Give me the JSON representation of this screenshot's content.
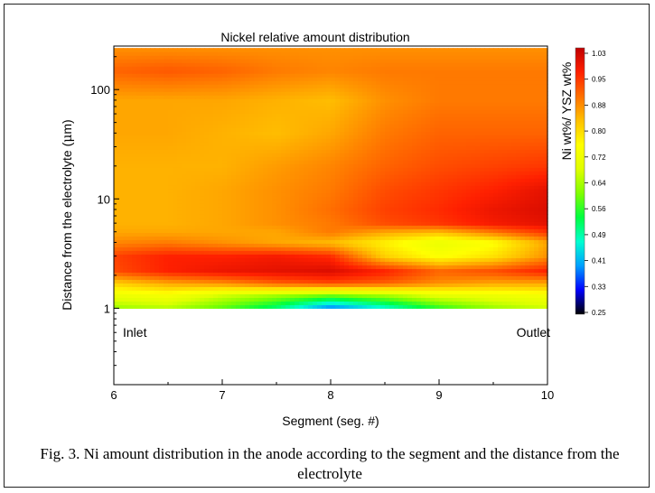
{
  "chart_data": {
    "type": "heatmap",
    "title": "Nickel relative amount distribution",
    "xlabel": "Segment (seg. #)",
    "ylabel_prefix": "Distance from the electrolyte (",
    "ylabel_mu": "μ",
    "ylabel_suffix": "m)",
    "xlim": [
      6,
      10
    ],
    "ylim": [
      0.2,
      250
    ],
    "y_scale": "log",
    "x_ticks": [
      "6",
      "7",
      "8",
      "9",
      "10"
    ],
    "y_ticks": [
      {
        "value": 1,
        "label": "1"
      },
      {
        "value": 10,
        "label": "10"
      },
      {
        "value": 100,
        "label": "100"
      }
    ],
    "colorbar": {
      "label": "Ni wt%/ YSZ wt%",
      "ticks": [
        "1.03",
        "0.95",
        "0.88",
        "0.80",
        "0.72",
        "0.64",
        "0.56",
        "0.49",
        "0.41",
        "0.33",
        "0.25"
      ],
      "range": [
        0.25,
        1.03
      ]
    },
    "annotations": {
      "left": "Inlet",
      "right": "Outlet"
    },
    "grid_x": [
      6,
      6.5,
      7,
      7.5,
      8,
      8.5,
      9,
      9.5,
      10
    ],
    "grid_y": [
      1,
      1.3,
      1.7,
      2.2,
      3,
      4,
      5,
      6,
      8,
      12,
      20,
      40,
      80,
      150,
      240
    ],
    "values": [
      [
        0.62,
        0.64,
        0.58,
        0.5,
        0.36,
        0.45,
        0.55,
        0.62,
        0.66
      ],
      [
        0.7,
        0.72,
        0.66,
        0.62,
        0.58,
        0.62,
        0.68,
        0.7,
        0.72
      ],
      [
        0.8,
        0.84,
        0.86,
        0.9,
        0.92,
        0.9,
        0.86,
        0.84,
        0.84
      ],
      [
        0.92,
        0.96,
        0.98,
        0.99,
        1.0,
        0.96,
        0.9,
        0.92,
        0.96
      ],
      [
        0.93,
        0.96,
        0.96,
        0.97,
        0.95,
        0.8,
        0.74,
        0.78,
        0.86
      ],
      [
        0.87,
        0.88,
        0.86,
        0.84,
        0.82,
        0.76,
        0.7,
        0.74,
        0.84
      ],
      [
        0.84,
        0.84,
        0.84,
        0.84,
        0.88,
        0.84,
        0.82,
        0.88,
        0.94
      ],
      [
        0.83,
        0.83,
        0.84,
        0.86,
        0.88,
        0.92,
        0.94,
        0.97,
        0.99
      ],
      [
        0.83,
        0.83,
        0.84,
        0.86,
        0.89,
        0.93,
        0.95,
        0.98,
        1.0
      ],
      [
        0.83,
        0.83,
        0.84,
        0.86,
        0.88,
        0.92,
        0.94,
        0.96,
        0.99
      ],
      [
        0.83,
        0.83,
        0.83,
        0.85,
        0.87,
        0.9,
        0.92,
        0.93,
        0.94
      ],
      [
        0.84,
        0.84,
        0.83,
        0.82,
        0.84,
        0.88,
        0.9,
        0.9,
        0.9
      ],
      [
        0.84,
        0.84,
        0.84,
        0.83,
        0.82,
        0.86,
        0.88,
        0.88,
        0.88
      ],
      [
        0.9,
        0.91,
        0.9,
        0.88,
        0.87,
        0.88,
        0.88,
        0.88,
        0.88
      ],
      [
        0.86,
        0.86,
        0.86,
        0.86,
        0.86,
        0.86,
        0.86,
        0.86,
        0.86
      ]
    ],
    "grid": false,
    "legend": "right (color scale)"
  },
  "caption": "Fig. 3. Ni amount distribution in the anode according to the segment and the distance from the electrolyte",
  "colors": {
    "scale": [
      "#000000",
      "#0000ff",
      "#00a0ff",
      "#00ffd0",
      "#00ff40",
      "#80ff00",
      "#e0ff00",
      "#ffff00",
      "#ffc000",
      "#ff7000",
      "#ff2000",
      "#c00000"
    ]
  }
}
